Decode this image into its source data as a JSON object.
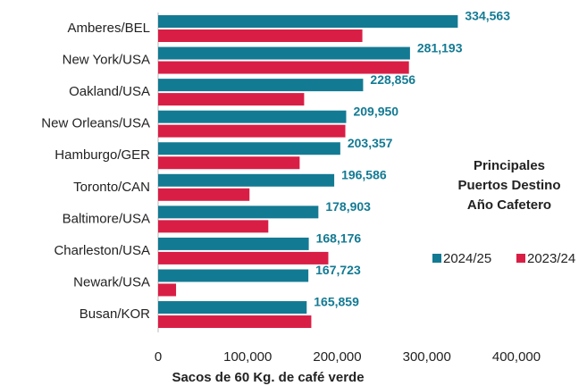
{
  "chart_data": {
    "type": "barh",
    "annotation": [
      "Principales",
      "Puertos Destino",
      "Año Cafetero"
    ],
    "x_label": "Sacos de 60 Kg. de café verde",
    "categories": [
      "Amberes/BEL",
      "New York/USA",
      "Oakland/USA",
      "New Orleans/USA",
      "Hamburgo/GER",
      "Toronto/CAN",
      "Baltimore/USA",
      "Charleston/USA",
      "Newark/USA",
      "Busan/KOR"
    ],
    "series": [
      {
        "name": "2024/25",
        "color": "#137a93",
        "values": [
          334563,
          281193,
          228856,
          209950,
          203357,
          196586,
          178903,
          168176,
          167723,
          165859
        ],
        "value_labels": [
          "334,563",
          "281,193",
          "228,856",
          "209,950",
          "203,357",
          "196,586",
          "178,903",
          "168,176",
          "167,723",
          "165,859"
        ]
      },
      {
        "name": "2023/24",
        "color": "#d91e45",
        "values": [
          228000,
          280000,
          163000,
          209000,
          158000,
          102000,
          123000,
          190000,
          20000,
          171000
        ]
      }
    ],
    "xlim": [
      0,
      400000
    ],
    "xticks": [
      0,
      {
        "value": 100000,
        "label": "100,000"
      },
      {
        "value": 200000,
        "label": "200,000"
      },
      {
        "value": 300000,
        "label": "300,000"
      },
      {
        "value": 400000,
        "label": "400,000"
      }
    ],
    "legend": "right"
  }
}
